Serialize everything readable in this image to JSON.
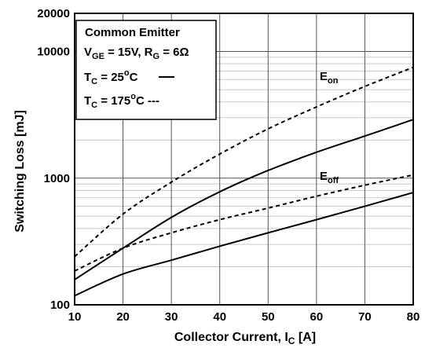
{
  "chart_data": {
    "type": "line",
    "ylabel": "Switching Loss [mJ]",
    "xlabel": {
      "main": "Collector Current, I",
      "sub": "C",
      "unit": " [A]"
    },
    "xlim": [
      10,
      80
    ],
    "ylim": [
      100,
      20000
    ],
    "yscale": "log",
    "grid": true,
    "x_ticks": [
      "10",
      "20",
      "30",
      "40",
      "50",
      "60",
      "70",
      "80"
    ],
    "y_ticks": [
      {
        "value": 100,
        "label": "100"
      },
      {
        "value": 1000,
        "label": "1000"
      },
      {
        "value": 10000,
        "label": "10000"
      },
      {
        "value": 20000,
        "label": "20000"
      }
    ],
    "legend": {
      "position": "top-left",
      "title": "Common Emitter",
      "cond_v": {
        "a": "V",
        "a_sub": "GE",
        "b": " = 15V, R",
        "b_sub": "G",
        "c": " = 6Ω"
      },
      "line25": {
        "a": "T",
        "a_sub": "C",
        "b": " = 25",
        "sup": "o",
        "c": "C"
      },
      "line175": {
        "a": "T",
        "a_sub": "C",
        "b": " = 175",
        "sup": "o",
        "c": "C ---"
      }
    },
    "series": [
      {
        "name": "Eon",
        "label_main": "E",
        "label_sub": "on",
        "style": "dashed",
        "tc": 175,
        "x": [
          10,
          20,
          30,
          40,
          50,
          60,
          70,
          80
        ],
        "y": [
          240,
          520,
          930,
          1550,
          2450,
          3650,
          5300,
          7500
        ]
      },
      {
        "name": "Eon",
        "label_main": "E",
        "label_sub": "on",
        "style": "solid",
        "tc": 25,
        "x": [
          10,
          20,
          30,
          40,
          50,
          60,
          70,
          80
        ],
        "y": [
          158,
          280,
          490,
          780,
          1150,
          1600,
          2150,
          2900
        ]
      },
      {
        "name": "Eoff",
        "label_main": "E",
        "label_sub": "off",
        "style": "dashed",
        "tc": 175,
        "x": [
          10,
          20,
          30,
          40,
          50,
          60,
          70,
          80
        ],
        "y": [
          185,
          280,
          370,
          470,
          580,
          720,
          880,
          1060
        ]
      },
      {
        "name": "Eoff",
        "label_main": "E",
        "label_sub": "off",
        "style": "solid",
        "tc": 25,
        "x": [
          10,
          20,
          30,
          40,
          50,
          60,
          70,
          80
        ],
        "y": [
          118,
          175,
          225,
          290,
          370,
          470,
          600,
          770
        ]
      }
    ]
  }
}
